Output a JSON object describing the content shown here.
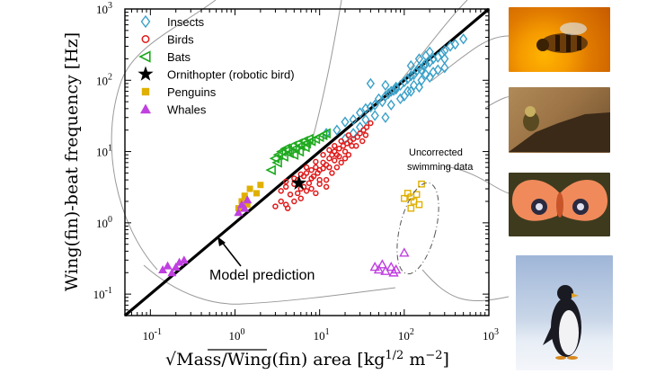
{
  "chart_data": {
    "type": "scatter",
    "xlabel": "√Mass/Wing(fin) area [kg1/2 m−2]",
    "ylabel": "Wing(fin)-beat frequency [Hz]",
    "xscale": "log",
    "yscale": "log",
    "xlim": [
      0.05,
      1000
    ],
    "ylim": [
      0.05,
      1000
    ],
    "x_ticks": [
      {
        "base": "10",
        "exp": "-1"
      },
      {
        "base": "10",
        "exp": "0"
      },
      {
        "base": "10",
        "exp": "1"
      },
      {
        "base": "10",
        "exp": "2"
      },
      {
        "base": "10",
        "exp": "3"
      }
    ],
    "y_ticks": [
      {
        "base": "10",
        "exp": "-1"
      },
      {
        "base": "10",
        "exp": "0"
      },
      {
        "base": "10",
        "exp": "1"
      },
      {
        "base": "10",
        "exp": "2"
      },
      {
        "base": "10",
        "exp": "3"
      }
    ],
    "legend_position": "top-left",
    "series": [
      {
        "name": "Insects",
        "marker": "diamond-open",
        "color": "#3aa0c8",
        "points": [
          [
            12,
            18
          ],
          [
            16,
            20
          ],
          [
            20,
            26
          ],
          [
            25,
            28
          ],
          [
            30,
            35
          ],
          [
            35,
            40
          ],
          [
            40,
            42
          ],
          [
            45,
            45
          ],
          [
            50,
            55
          ],
          [
            55,
            50
          ],
          [
            60,
            60
          ],
          [
            65,
            65
          ],
          [
            70,
            70
          ],
          [
            75,
            72
          ],
          [
            80,
            80
          ],
          [
            90,
            85
          ],
          [
            100,
            95
          ],
          [
            110,
            105
          ],
          [
            120,
            115
          ],
          [
            130,
            120
          ],
          [
            140,
            135
          ],
          [
            150,
            150
          ],
          [
            160,
            140
          ],
          [
            170,
            160
          ],
          [
            180,
            170
          ],
          [
            200,
            180
          ],
          [
            220,
            200
          ],
          [
            250,
            210
          ],
          [
            280,
            240
          ],
          [
            300,
            260
          ],
          [
            350,
            300
          ],
          [
            400,
            320
          ],
          [
            500,
            380
          ],
          [
            40,
            90
          ],
          [
            60,
            85
          ],
          [
            80,
            75
          ],
          [
            100,
            60
          ],
          [
            120,
            70
          ],
          [
            150,
            80
          ],
          [
            200,
            110
          ],
          [
            250,
            140
          ],
          [
            300,
            150
          ],
          [
            20,
            15
          ],
          [
            25,
            18
          ],
          [
            30,
            22
          ],
          [
            35,
            28
          ],
          [
            70,
            45
          ],
          [
            90,
            55
          ],
          [
            110,
            70
          ],
          [
            130,
            85
          ],
          [
            160,
            100
          ],
          [
            180,
            120
          ],
          [
            220,
            130
          ],
          [
            60,
            30
          ],
          [
            45,
            32
          ],
          [
            150,
            200
          ],
          [
            200,
            250
          ],
          [
            120,
            160
          ],
          [
            300,
            200
          ],
          [
            180,
            220
          ]
        ]
      },
      {
        "name": "Birds",
        "marker": "circle-open",
        "color": "#e01a1a",
        "points": [
          [
            3.5,
            2.8
          ],
          [
            4,
            3.2
          ],
          [
            4.5,
            2.5
          ],
          [
            5,
            3.5
          ],
          [
            5.5,
            4
          ],
          [
            6,
            3
          ],
          [
            6.5,
            4.5
          ],
          [
            7,
            5
          ],
          [
            8,
            4.2
          ],
          [
            9,
            6
          ],
          [
            10,
            5.5
          ],
          [
            11,
            7
          ],
          [
            12,
            6.5
          ],
          [
            13,
            8
          ],
          [
            14,
            9
          ],
          [
            15,
            10
          ],
          [
            17,
            11
          ],
          [
            19,
            12
          ],
          [
            21,
            13
          ],
          [
            23,
            14
          ],
          [
            25,
            15
          ],
          [
            28,
            16
          ],
          [
            30,
            18
          ],
          [
            33,
            20
          ],
          [
            36,
            22
          ],
          [
            40,
            25
          ],
          [
            4,
            1.8
          ],
          [
            5,
            2
          ],
          [
            6,
            2.2
          ],
          [
            7,
            2.8
          ],
          [
            8,
            3
          ],
          [
            9,
            2.6
          ],
          [
            10,
            3.5
          ],
          [
            12,
            4
          ],
          [
            14,
            5
          ],
          [
            16,
            6
          ],
          [
            18,
            7
          ],
          [
            20,
            8
          ],
          [
            22,
            9
          ],
          [
            3,
            1.7
          ],
          [
            3.5,
            2
          ],
          [
            4.2,
            1.6
          ],
          [
            5.5,
            2.6
          ],
          [
            6.5,
            3.2
          ],
          [
            7.5,
            3.6
          ],
          [
            8.5,
            4.5
          ],
          [
            9.5,
            5
          ],
          [
            11,
            5.8
          ],
          [
            13,
            6
          ],
          [
            15,
            7.5
          ],
          [
            17,
            8.5
          ],
          [
            20,
            10
          ],
          [
            24,
            12
          ],
          [
            27,
            12
          ],
          [
            32,
            14
          ],
          [
            35,
            17
          ],
          [
            10,
            4
          ],
          [
            12,
            3.2
          ],
          [
            8,
            5.5
          ],
          [
            6,
            4.8
          ],
          [
            5,
            4.2
          ],
          [
            4,
            3.8
          ],
          [
            15,
            12
          ],
          [
            18,
            14
          ],
          [
            22,
            17
          ],
          [
            9,
            7.2
          ],
          [
            7,
            6
          ],
          [
            11,
            9
          ],
          [
            13,
            10.5
          ],
          [
            16,
            9
          ]
        ]
      },
      {
        "name": "Bats",
        "marker": "triangle-left-open",
        "color": "#1faa1f",
        "points": [
          [
            3,
            8
          ],
          [
            3.3,
            9
          ],
          [
            3.6,
            10
          ],
          [
            4,
            11
          ],
          [
            4.4,
            9.5
          ],
          [
            4.8,
            12
          ],
          [
            5.2,
            11
          ],
          [
            5.6,
            13
          ],
          [
            6,
            12
          ],
          [
            6.5,
            14
          ],
          [
            7,
            13
          ],
          [
            7.5,
            15
          ],
          [
            8,
            14
          ],
          [
            3.2,
            7
          ],
          [
            3.8,
            8.5
          ],
          [
            4.2,
            10.5
          ],
          [
            5,
            9
          ],
          [
            5.8,
            10
          ],
          [
            6.8,
            11.5
          ],
          [
            9,
            15
          ],
          [
            10,
            16
          ],
          [
            11,
            17
          ],
          [
            12,
            18
          ],
          [
            2.7,
            5.5
          ]
        ]
      },
      {
        "name": "Ornithopter (robotic bird)",
        "marker": "star",
        "color": "#000000",
        "points": [
          [
            5.7,
            3.6
          ]
        ]
      },
      {
        "name": "Penguins",
        "marker": "square-filled",
        "color": "#e0b000",
        "points": [
          [
            1.1,
            1.6
          ],
          [
            1.2,
            2
          ],
          [
            1.3,
            2.4
          ],
          [
            1.5,
            3
          ],
          [
            1.8,
            2.6
          ],
          [
            2,
            3.4
          ],
          [
            1.4,
            1.8
          ]
        ],
        "swimming_uncorrected": [
          [
            100,
            2.2
          ],
          [
            110,
            2.6
          ],
          [
            120,
            2.3
          ],
          [
            130,
            2
          ],
          [
            140,
            2.5
          ],
          [
            150,
            1.8
          ],
          [
            160,
            3.5
          ],
          [
            120,
            1.6
          ]
        ]
      },
      {
        "name": "Whales",
        "marker": "triangle-up-filled",
        "color": "#c040e0",
        "points": [
          [
            0.14,
            0.22
          ],
          [
            0.16,
            0.25
          ],
          [
            0.18,
            0.2
          ],
          [
            0.2,
            0.24
          ],
          [
            0.22,
            0.28
          ],
          [
            0.25,
            0.3
          ],
          [
            1.1,
            1.4
          ],
          [
            1.2,
            1.8
          ],
          [
            1.3,
            1.6
          ],
          [
            1.4,
            2.1
          ]
        ],
        "swimming_uncorrected": [
          [
            45,
            0.24
          ],
          [
            50,
            0.22
          ],
          [
            55,
            0.26
          ],
          [
            60,
            0.21
          ],
          [
            70,
            0.24
          ],
          [
            75,
            0.2
          ],
          [
            80,
            0.22
          ],
          [
            100,
            0.38
          ]
        ]
      }
    ],
    "model_line": {
      "label": "Model prediction",
      "x": [
        0.05,
        1000
      ],
      "y": [
        0.05,
        1000
      ]
    },
    "annotations": {
      "uncorrected_line1": "Uncorrected",
      "uncorrected_line2": "swimming data"
    }
  }
}
